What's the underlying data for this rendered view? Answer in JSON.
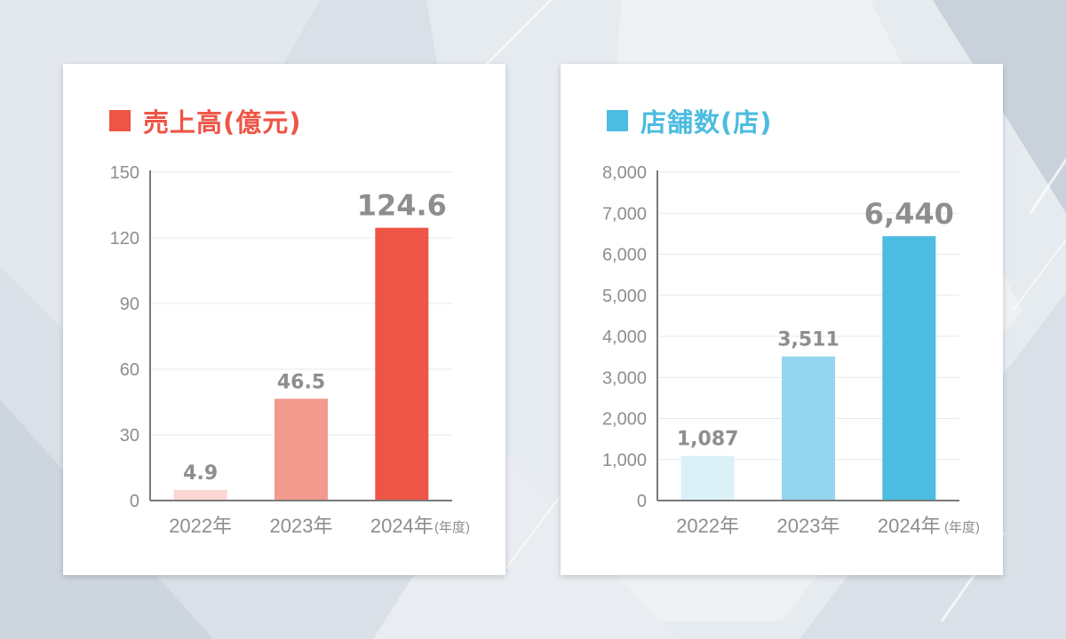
{
  "colors": {
    "sales_accent": "#ee5546",
    "stores_accent": "#4cbce0",
    "axis_text": "#8e8e8e",
    "grid": "#e8e8e8"
  },
  "chart_data": [
    {
      "id": "sales",
      "type": "bar",
      "title": "売上高(億元)",
      "categories": [
        "2022年",
        "2023年",
        "2024年"
      ],
      "values": [
        4.9,
        46.5,
        124.6
      ],
      "value_labels": [
        "4.9",
        "46.5",
        "124.6"
      ],
      "bar_colors": [
        "#fbd8d4",
        "#f29a8e",
        "#ee5546"
      ],
      "highlight_index": 2,
      "yticks": [
        0,
        30,
        60,
        90,
        120,
        150
      ],
      "ytick_labels": [
        "0",
        "30",
        "60",
        "90",
        "120",
        "150"
      ],
      "ylim": [
        0,
        150
      ],
      "x_unit_label": "(年度)",
      "grid": true,
      "legend": "top-left"
    },
    {
      "id": "stores",
      "type": "bar",
      "title": "店舗数(店)",
      "categories": [
        "2022年",
        "2023年",
        "2024年"
      ],
      "values": [
        1087,
        3511,
        6440
      ],
      "value_labels": [
        "1,087",
        "3,511",
        "6,440"
      ],
      "bar_colors": [
        "#dbf1f8",
        "#93d6ee",
        "#4cbce0"
      ],
      "highlight_index": 2,
      "yticks": [
        0,
        1000,
        2000,
        3000,
        4000,
        5000,
        6000,
        7000,
        8000
      ],
      "ytick_labels": [
        "0",
        "1,000",
        "2,000",
        "3,000",
        "4,000",
        "5,000",
        "6,000",
        "7,000",
        "8,000"
      ],
      "ylim": [
        0,
        8000
      ],
      "x_unit_label": "(年度)",
      "grid": true,
      "legend": "top-left"
    }
  ]
}
